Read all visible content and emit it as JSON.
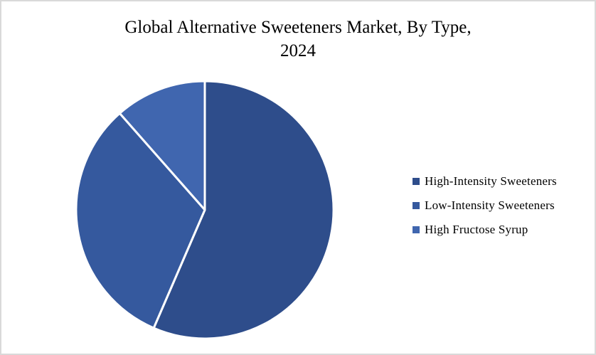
{
  "frame": {
    "background_color": "#ffffff",
    "border_color": "#d9d9d9"
  },
  "chart_data": {
    "type": "pie",
    "title": "Global Alternative Sweeteners Market, By Type, 2024",
    "title_lines": [
      "Global Alternative Sweeteners Market, By Type,",
      "2024"
    ],
    "start_angle_deg": 0,
    "direction": "clockwise",
    "legend_position": "right",
    "separator_color": "#ffffff",
    "text_color": "#000000",
    "slices": [
      {
        "label": "High-Intensity Sweeteners",
        "value_pct": 56.5,
        "color": "#2E4D8B"
      },
      {
        "label": "Low-Intensity Sweeteners",
        "value_pct": 32.0,
        "color": "#35599E"
      },
      {
        "label": "High Fructose Syrup",
        "value_pct": 11.5,
        "color": "#4066AF"
      }
    ]
  }
}
